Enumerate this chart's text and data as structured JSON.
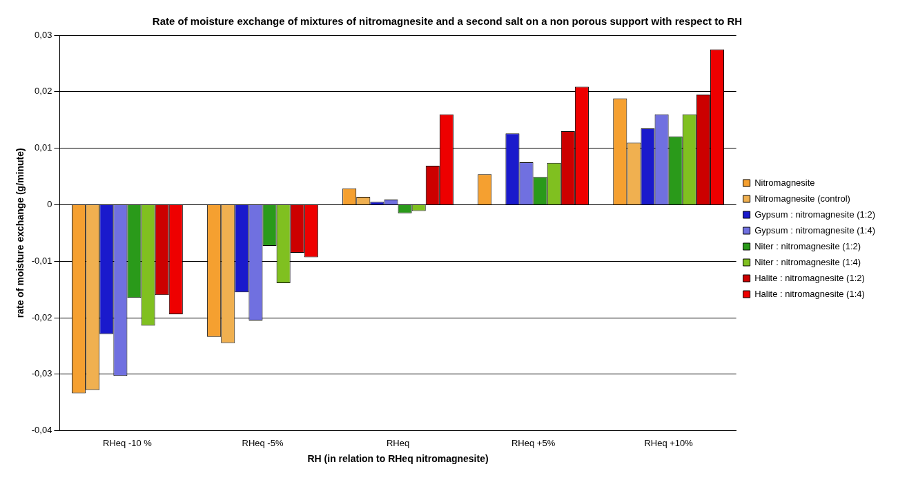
{
  "chart_data": {
    "type": "bar",
    "title": "Rate of moisture exchange of mixtures of nitromagnesite and a second salt on a non porous support with respect to RH",
    "xlabel": "RH (in relation to RHeq nitromagnesite)",
    "ylabel": "rate of moisture exchange (g/minute)",
    "categories": [
      "RHeq -10 %",
      "RHeq -5%",
      "RHeq",
      "RHeq +5%",
      "RHeq +10%"
    ],
    "series": [
      {
        "name": "Nitromagnesite",
        "color": "#f5a030",
        "values": [
          -0.0334,
          -0.0234,
          0.0029,
          0.0054,
          0.0188
        ]
      },
      {
        "name": "Nitromagnesite (control)",
        "color": "#f0b050",
        "values": [
          -0.0328,
          -0.0245,
          0.0014,
          null,
          0.011
        ]
      },
      {
        "name": "Gypsum : nitromagnesite (1:2)",
        "color": "#1a1acc",
        "values": [
          -0.0229,
          -0.0155,
          0.0005,
          0.0126,
          0.0135
        ]
      },
      {
        "name": "Gypsum : nitromagnesite (1:4)",
        "color": "#7070e0",
        "values": [
          -0.0303,
          -0.0205,
          0.0009,
          0.0075,
          0.016
        ]
      },
      {
        "name": "Niter : nitromagnesite (1:2)",
        "color": "#2a9a1a",
        "values": [
          -0.0165,
          -0.0073,
          -0.0015,
          0.0049,
          0.0121
        ]
      },
      {
        "name": "Niter : nitromagnesite (1:4)",
        "color": "#80c020",
        "values": [
          -0.0214,
          -0.0139,
          -0.0011,
          0.0074,
          0.016
        ]
      },
      {
        "name": "Halite : nitromagnesite (1:2)",
        "color": "#cc0000",
        "values": [
          -0.016,
          -0.0085,
          0.0069,
          0.013,
          0.0195
        ]
      },
      {
        "name": "Halite : nitromagnesite (1:4)",
        "color": "#ee0000",
        "values": [
          -0.0194,
          -0.0093,
          0.016,
          0.0209,
          0.0275
        ]
      }
    ],
    "ylim": [
      -0.04,
      0.03
    ],
    "yticks": [
      {
        "value": -0.04,
        "label": "-0,04"
      },
      {
        "value": -0.03,
        "label": "-0,03"
      },
      {
        "value": -0.02,
        "label": "-0,02"
      },
      {
        "value": -0.01,
        "label": "-0,01"
      },
      {
        "value": 0,
        "label": "0"
      },
      {
        "value": 0.01,
        "label": "0,01"
      },
      {
        "value": 0.02,
        "label": "0,02"
      },
      {
        "value": 0.03,
        "label": "0,03"
      }
    ],
    "grid": "y",
    "legend": "right"
  }
}
